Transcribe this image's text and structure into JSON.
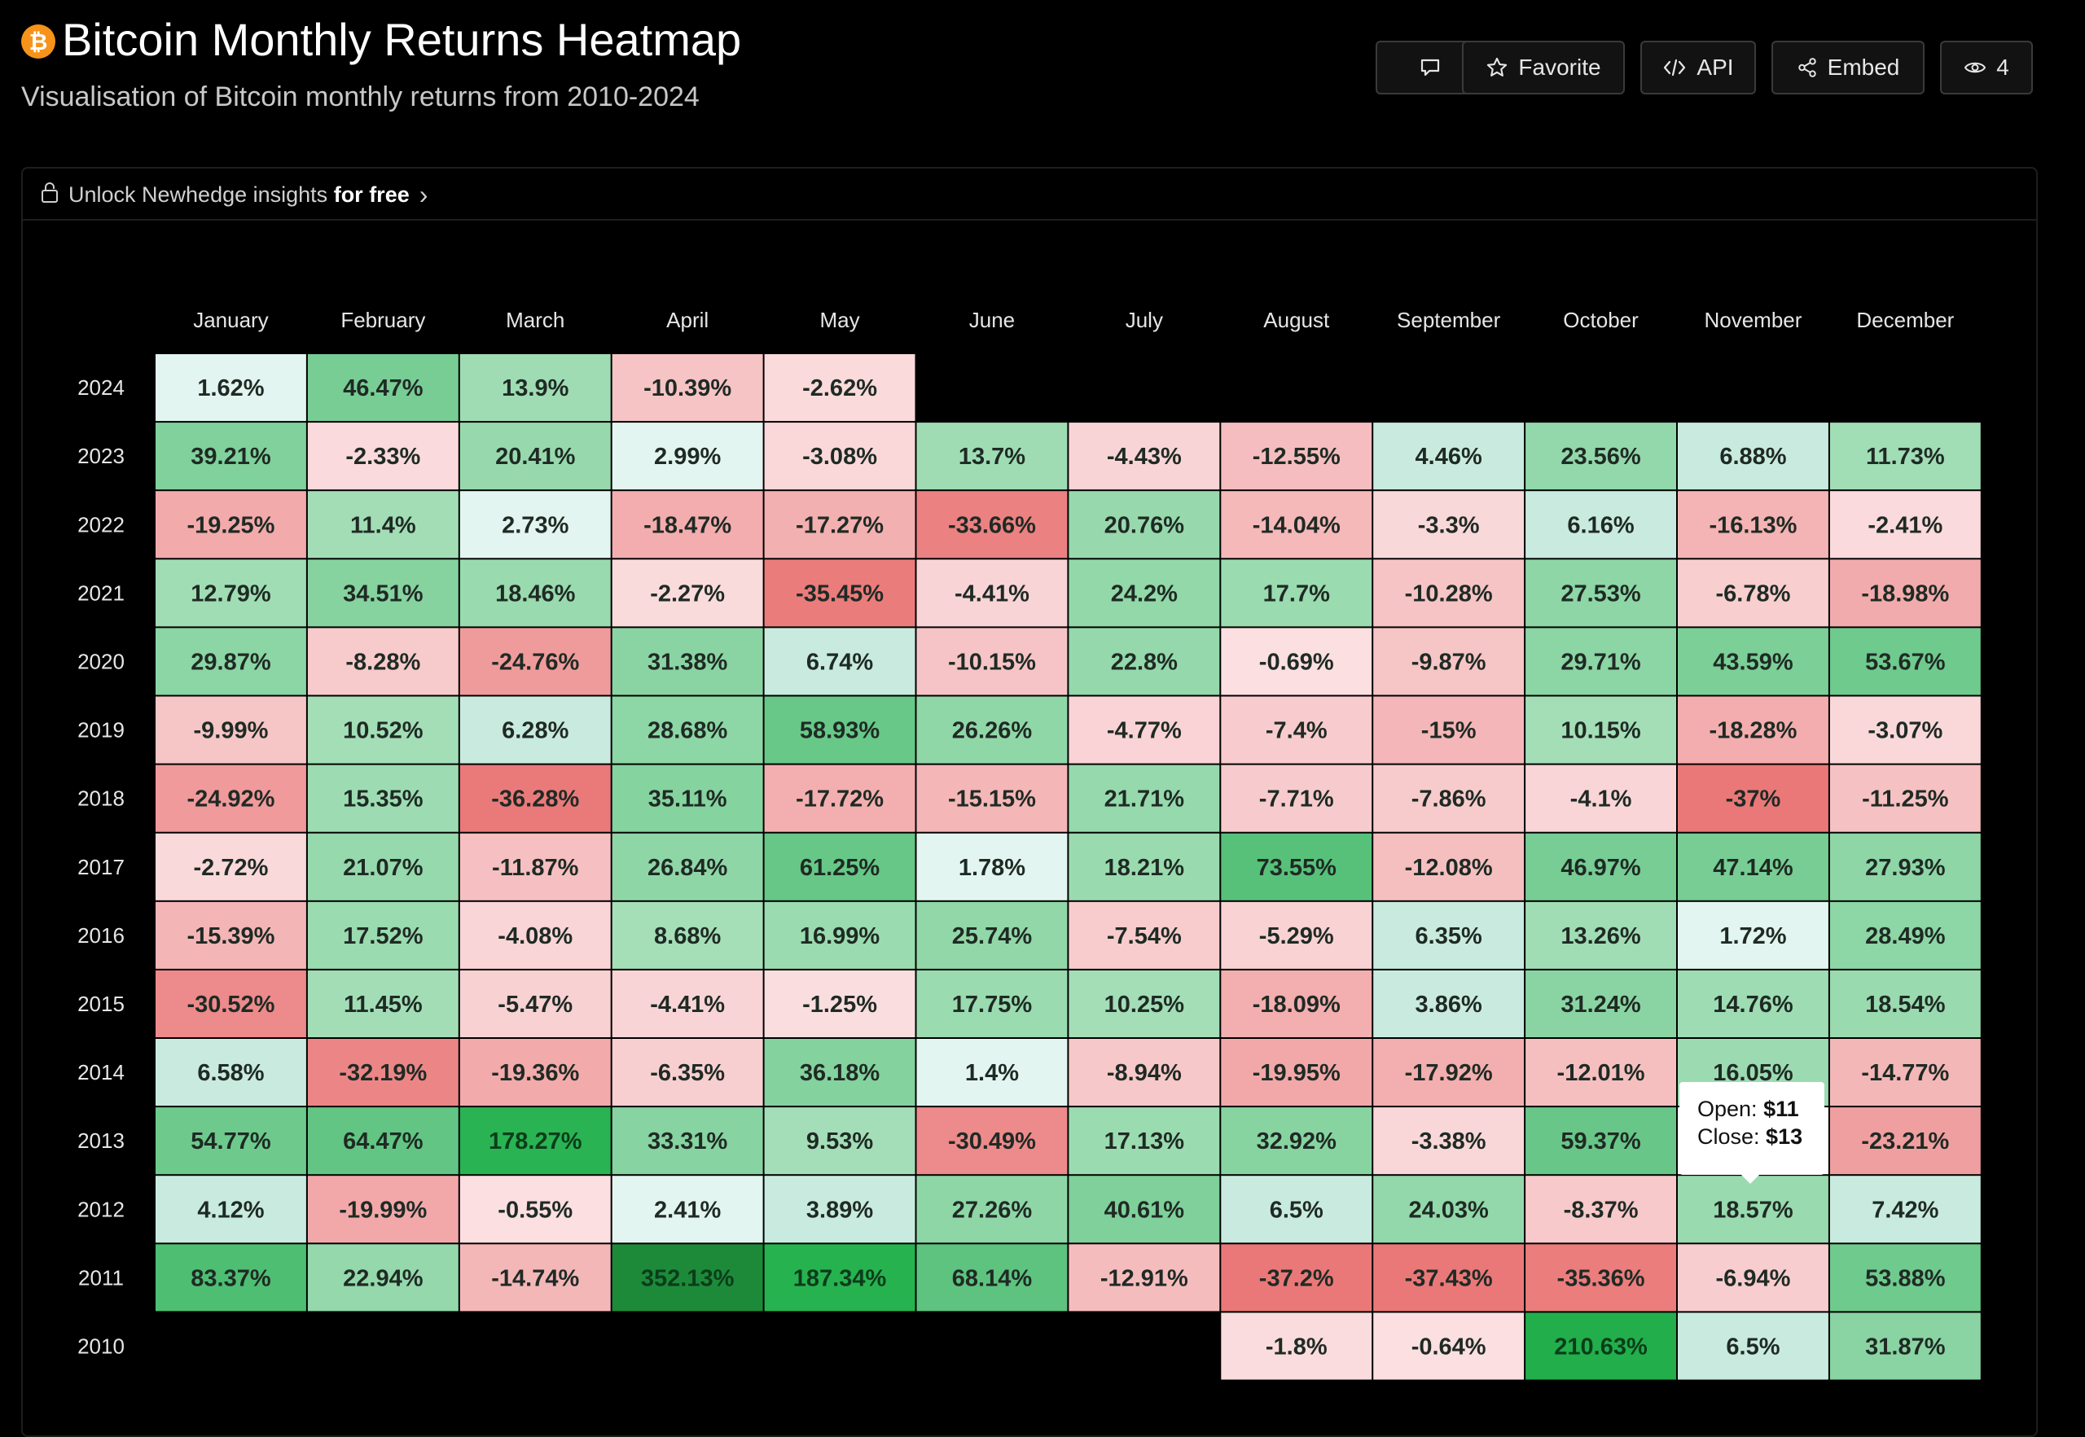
{
  "header": {
    "logo_glyph": "₿",
    "title": "Bitcoin Monthly Returns Heatmap",
    "subtitle": "Visualisation of Bitcoin monthly returns from 2010-2024"
  },
  "toolbar": {
    "comment_icon": "comment-icon",
    "favorite_label": "Favorite",
    "api_label": "API",
    "embed_label": "Embed",
    "views_count": "4"
  },
  "unlock": {
    "prefix": "Unlock Newhedge insights",
    "bold": "for free",
    "chevron": "›"
  },
  "tooltip": {
    "open_label": "Open:",
    "open_value": "$11",
    "close_label": "Close:",
    "close_value": "$13"
  },
  "colors": {
    "background": "#000000",
    "positive_max": "#1f8f3a",
    "negative_max": "#e87474",
    "neutral": "#e0f4ee",
    "accent_bitcoin": "#f7931a"
  },
  "chart_data": {
    "type": "heatmap",
    "title": "Bitcoin Monthly Returns Heatmap",
    "x_labels": [
      "January",
      "February",
      "March",
      "April",
      "May",
      "June",
      "July",
      "August",
      "September",
      "October",
      "November",
      "December"
    ],
    "y_labels": [
      "2024",
      "2023",
      "2022",
      "2021",
      "2020",
      "2019",
      "2018",
      "2017",
      "2016",
      "2015",
      "2014",
      "2013",
      "2012",
      "2011",
      "2010"
    ],
    "unit": "%",
    "values": [
      [
        1.62,
        46.47,
        13.9,
        -10.39,
        -2.62,
        null,
        null,
        null,
        null,
        null,
        null,
        null
      ],
      [
        39.21,
        -2.33,
        20.41,
        2.99,
        -3.08,
        13.7,
        -4.43,
        -12.55,
        4.46,
        23.56,
        6.88,
        11.73
      ],
      [
        -19.25,
        11.4,
        2.73,
        -18.47,
        -17.27,
        -33.66,
        20.76,
        -14.04,
        -3.3,
        6.16,
        -16.13,
        -2.41
      ],
      [
        12.79,
        34.51,
        18.46,
        -2.27,
        -35.45,
        -4.41,
        24.2,
        17.7,
        -10.28,
        27.53,
        -6.78,
        -18.98
      ],
      [
        29.87,
        -8.28,
        -24.76,
        31.38,
        6.74,
        -10.15,
        22.8,
        -0.69,
        -9.87,
        29.71,
        43.59,
        53.67
      ],
      [
        -9.99,
        10.52,
        6.28,
        28.68,
        58.93,
        26.26,
        -4.77,
        -7.4,
        -15,
        10.15,
        -18.28,
        -3.07
      ],
      [
        -24.92,
        15.35,
        -36.28,
        35.11,
        -17.72,
        -15.15,
        21.71,
        -7.71,
        -7.86,
        -4.1,
        -37,
        -11.25
      ],
      [
        -2.72,
        21.07,
        -11.87,
        26.84,
        61.25,
        1.78,
        18.21,
        73.55,
        -12.08,
        46.97,
        47.14,
        27.93
      ],
      [
        -15.39,
        17.52,
        -4.08,
        8.68,
        16.99,
        25.74,
        -7.54,
        -5.29,
        6.35,
        13.26,
        1.72,
        28.49
      ],
      [
        -30.52,
        11.45,
        -5.47,
        -4.41,
        -1.25,
        17.75,
        10.25,
        -18.09,
        3.86,
        31.24,
        14.76,
        18.54
      ],
      [
        6.58,
        -32.19,
        -19.36,
        -6.35,
        36.18,
        1.4,
        -8.94,
        -19.95,
        -17.92,
        -12.01,
        16.05,
        -14.77
      ],
      [
        54.77,
        64.47,
        178.27,
        33.31,
        9.53,
        -30.49,
        17.13,
        32.92,
        -3.38,
        59.37,
        null,
        -23.21
      ],
      [
        4.12,
        -19.99,
        -0.55,
        2.41,
        3.89,
        27.26,
        40.61,
        6.5,
        24.03,
        -8.37,
        18.57,
        7.42
      ],
      [
        83.37,
        22.94,
        -14.74,
        352.13,
        187.34,
        68.14,
        -12.91,
        -37.2,
        -37.43,
        -35.36,
        -6.94,
        53.88
      ],
      [
        null,
        null,
        null,
        null,
        null,
        null,
        null,
        -1.8,
        -0.64,
        210.63,
        6.5,
        31.87
      ]
    ]
  }
}
